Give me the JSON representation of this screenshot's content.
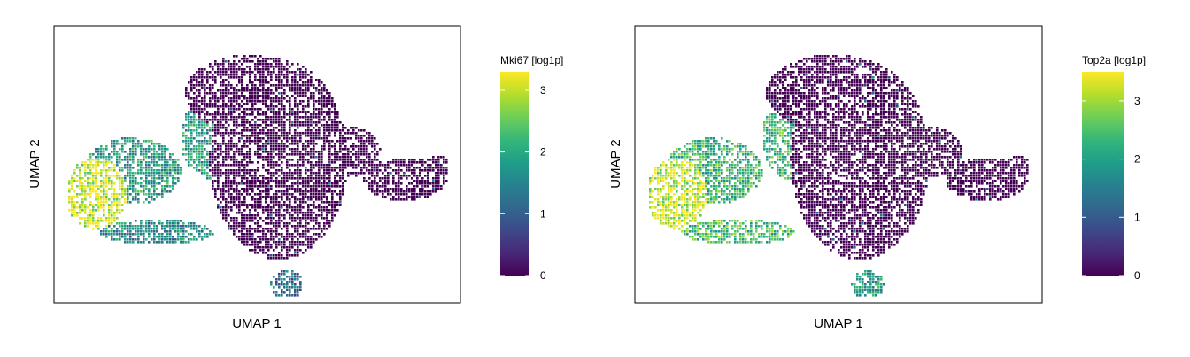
{
  "chart_data": [
    {
      "type": "scatter",
      "title": "",
      "xlabel": "UMAP 1",
      "ylabel": "UMAP 2",
      "colorbar": {
        "title": "Mki67 [log1p]",
        "ticks": [
          0,
          1,
          2,
          3
        ],
        "range": [
          0,
          3.3
        ],
        "colormap": "viridis"
      },
      "series": [
        {
          "color_value_regions": [
            {
              "region": "main-cluster",
              "value": 0
            },
            {
              "region": "left-arm",
              "value": 1.8
            },
            {
              "region": "left-arm-edge",
              "value": 3.1
            },
            {
              "region": "lower-left-arc",
              "value": 1.6
            },
            {
              "region": "bottom-tail",
              "value": 1.2
            },
            {
              "region": "right-lobes",
              "value": 0
            }
          ]
        }
      ]
    },
    {
      "type": "scatter",
      "title": "",
      "xlabel": "UMAP 1",
      "ylabel": "UMAP 2",
      "colorbar": {
        "title": "Top2a [log1p]",
        "ticks": [
          0,
          1,
          2,
          3
        ],
        "range": [
          0,
          3.5
        ],
        "colormap": "viridis"
      },
      "series": [
        {
          "color_value_regions": [
            {
              "region": "main-cluster",
              "value": 0
            },
            {
              "region": "left-arm",
              "value": 2.3
            },
            {
              "region": "left-arm-edge",
              "value": 3.2
            },
            {
              "region": "lower-left-arc",
              "value": 2.4
            },
            {
              "region": "bottom-tail",
              "value": 2.0
            },
            {
              "region": "right-lobes",
              "value": 0
            }
          ]
        }
      ]
    }
  ],
  "colors": {
    "viridis": [
      "#440154",
      "#482878",
      "#3e4989",
      "#31688e",
      "#26828e",
      "#1f9e89",
      "#35b779",
      "#6ece58",
      "#b5de2b",
      "#fde725"
    ],
    "frame": "#000000"
  }
}
